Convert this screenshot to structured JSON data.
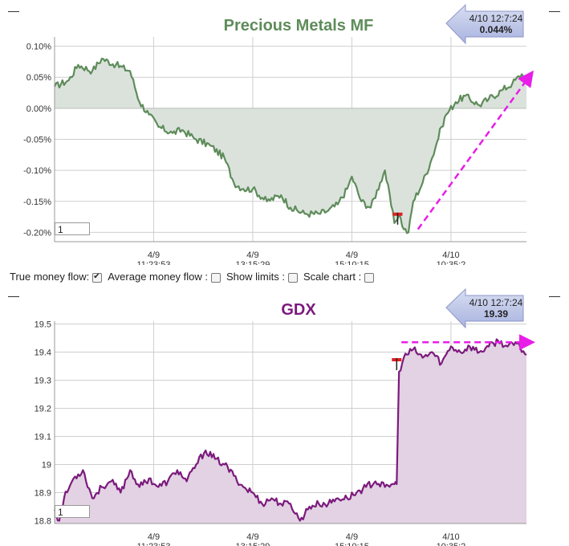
{
  "controls": {
    "true_money_flow": {
      "label": "True money flow:",
      "checked": true
    },
    "average_money_flow": {
      "label": "Average money flow :",
      "checked": false
    },
    "show_limits": {
      "label": "Show limits :",
      "checked": false
    },
    "scale_chart": {
      "label": "Scale chart :",
      "checked": false
    }
  },
  "chart_data": [
    {
      "type": "area",
      "title": "Precious Metals MF",
      "color": "#5e8c5a",
      "fill": "#dbe2dc",
      "title_color": "#5e8c5a",
      "y_ticks": [
        "0.10%",
        "0.05%",
        "0.00%",
        "-0.05%",
        "-0.10%",
        "-0.15%",
        "-0.20%"
      ],
      "y_tick_values": [
        0.1,
        0.05,
        0.0,
        -0.05,
        -0.1,
        -0.15,
        -0.2
      ],
      "ylim": [
        -0.215,
        0.115
      ],
      "x_ticks": [
        {
          "date": "4/9",
          "time": "11:23:53",
          "x": 0.21
        },
        {
          "date": "4/9",
          "time": "13:15:29",
          "x": 0.42
        },
        {
          "date": "4/9",
          "time": "15:10:15",
          "x": 0.63
        },
        {
          "date": "4/10",
          "time": "10:35:2",
          "x": 0.84
        }
      ],
      "tooltip": {
        "time": "4/10 12:7:24",
        "value": "0.044%"
      },
      "input_value": "1",
      "series": [
        {
          "x": [
            0,
            0.03,
            0.05,
            0.08,
            0.1,
            0.13,
            0.16,
            0.18,
            0.2,
            0.22,
            0.25,
            0.27,
            0.3,
            0.33,
            0.36,
            0.38,
            0.4,
            0.42,
            0.45,
            0.48,
            0.5,
            0.53,
            0.56,
            0.58,
            0.6,
            0.62,
            0.63,
            0.65,
            0.67,
            0.69,
            0.7,
            0.72,
            0.73,
            0.74,
            0.75,
            0.76,
            0.78,
            0.8,
            0.82,
            0.83,
            0.85,
            0.87,
            0.9,
            0.92,
            0.95,
            0.97,
            0.99,
            1.0
          ],
          "y": [
            0.035,
            0.045,
            0.07,
            0.06,
            0.08,
            0.07,
            0.06,
            0.01,
            -0.01,
            -0.03,
            -0.04,
            -0.035,
            -0.05,
            -0.06,
            -0.08,
            -0.12,
            -0.13,
            -0.13,
            -0.15,
            -0.14,
            -0.16,
            -0.17,
            -0.17,
            -0.165,
            -0.155,
            -0.13,
            -0.11,
            -0.15,
            -0.16,
            -0.12,
            -0.1,
            -0.185,
            -0.17,
            -0.195,
            -0.2,
            -0.15,
            -0.12,
            -0.08,
            -0.03,
            -0.01,
            0.01,
            0.02,
            0.005,
            0.015,
            0.03,
            0.04,
            0.055,
            0.044
          ]
        }
      ],
      "trend_arrow": {
        "x": [
          0.77,
          1.0
        ],
        "y": [
          -0.195,
          0.048
        ]
      },
      "marker": {
        "x": 0.727,
        "y": -0.172
      }
    },
    {
      "type": "area",
      "title": "GDX",
      "color": "#7b1a7d",
      "fill": "#e2d2e3",
      "title_color": "#7b1a7d",
      "y_ticks": [
        "19.5",
        "19.4",
        "19.3",
        "19.2",
        "19.1",
        "19",
        "18.9",
        "18.8"
      ],
      "y_tick_values": [
        19.5,
        19.4,
        19.3,
        19.2,
        19.1,
        19.0,
        18.9,
        18.8
      ],
      "ylim": [
        18.79,
        19.51
      ],
      "x_ticks": [
        {
          "date": "4/9",
          "time": "11:23:53",
          "x": 0.21
        },
        {
          "date": "4/9",
          "time": "13:15:29",
          "x": 0.42
        },
        {
          "date": "4/9",
          "time": "15:10:15",
          "x": 0.63
        },
        {
          "date": "4/10",
          "time": "10:35:2",
          "x": 0.84
        }
      ],
      "tooltip": {
        "time": "4/10 12:7:24",
        "value": "19.39"
      },
      "input_value": "1",
      "series": [
        {
          "x": [
            0,
            0.01,
            0.02,
            0.04,
            0.06,
            0.08,
            0.1,
            0.12,
            0.14,
            0.16,
            0.18,
            0.2,
            0.22,
            0.24,
            0.26,
            0.28,
            0.3,
            0.32,
            0.34,
            0.36,
            0.38,
            0.4,
            0.42,
            0.44,
            0.46,
            0.48,
            0.5,
            0.52,
            0.54,
            0.56,
            0.58,
            0.6,
            0.62,
            0.64,
            0.66,
            0.68,
            0.7,
            0.72,
            0.725,
            0.73,
            0.74,
            0.76,
            0.78,
            0.8,
            0.82,
            0.84,
            0.86,
            0.88,
            0.9,
            0.92,
            0.94,
            0.96,
            0.98,
            1.0
          ],
          "y": [
            18.84,
            18.8,
            18.88,
            18.95,
            18.98,
            18.88,
            18.92,
            18.94,
            18.9,
            18.98,
            18.92,
            18.95,
            18.92,
            18.94,
            18.98,
            18.94,
            19.0,
            19.05,
            19.02,
            19.0,
            18.96,
            18.92,
            18.9,
            18.86,
            18.88,
            18.86,
            18.86,
            18.8,
            18.85,
            18.86,
            18.86,
            18.88,
            18.88,
            18.9,
            18.92,
            18.94,
            18.92,
            18.93,
            18.93,
            19.33,
            19.38,
            19.41,
            19.38,
            19.4,
            19.36,
            19.42,
            19.4,
            19.42,
            19.4,
            19.42,
            19.44,
            19.42,
            19.43,
            19.39
          ]
        }
      ],
      "trend_arrow": {
        "x": [
          0.735,
          1.0
        ],
        "y": [
          19.435,
          19.435
        ]
      },
      "marker": {
        "x": 0.725,
        "y": 19.37
      }
    }
  ]
}
